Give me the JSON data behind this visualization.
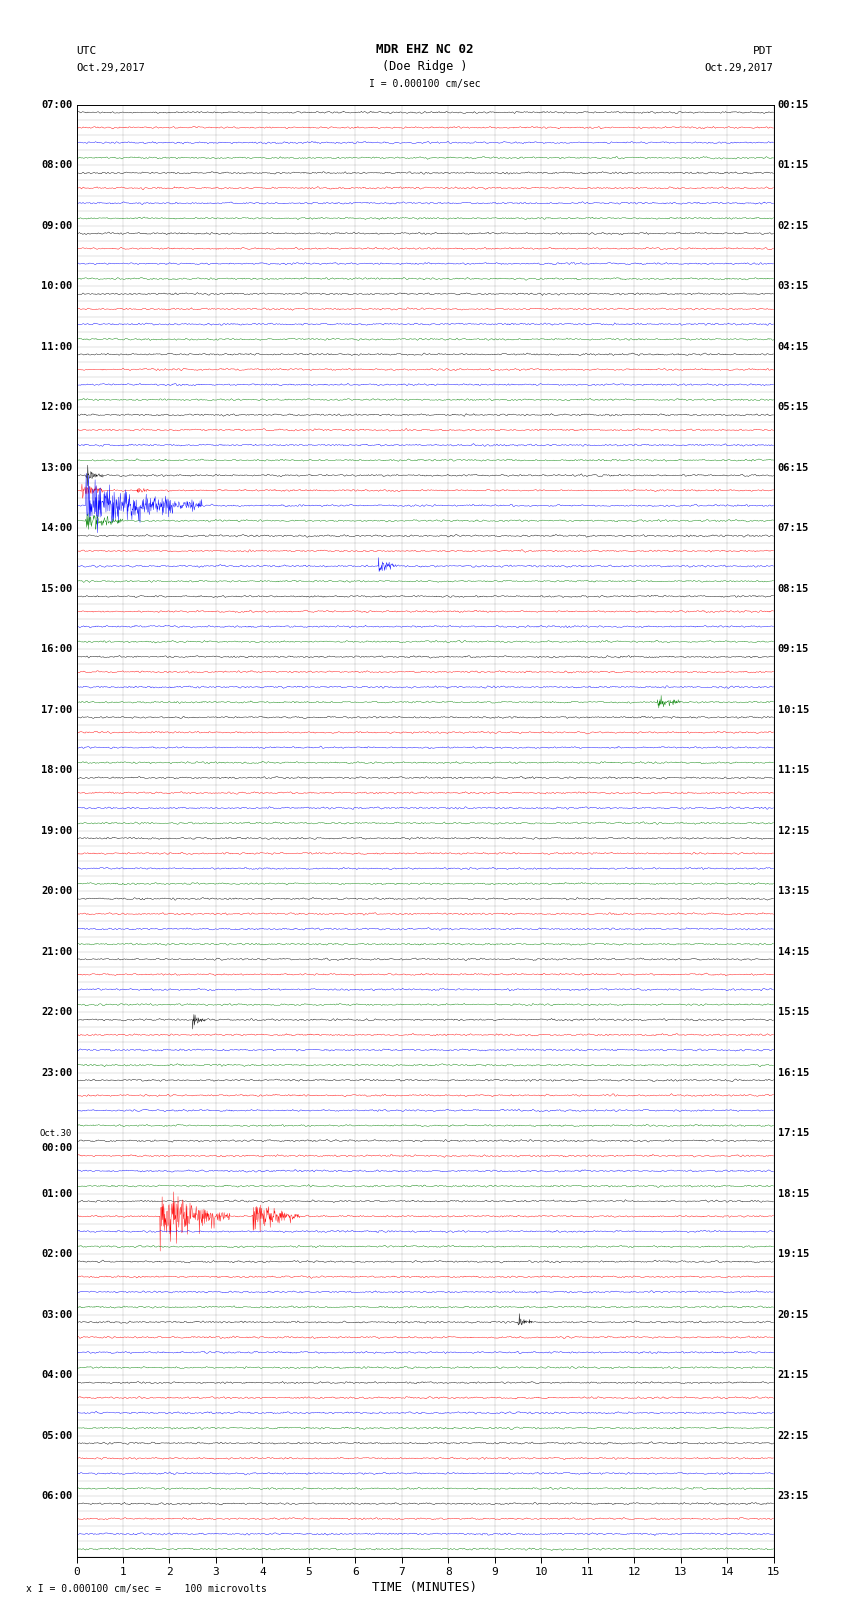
{
  "title_line1": "MDR EHZ NC 02",
  "title_line2": "(Doe Ridge )",
  "utc_label": "UTC",
  "utc_date": "Oct.29,2017",
  "pdt_label": "PDT",
  "pdt_date": "Oct.29,2017",
  "scale_label": "I = 0.000100 cm/sec",
  "footer_label": "x I = 0.000100 cm/sec =    100 microvolts",
  "xlabel": "TIME (MINUTES)",
  "bg_color": "#ffffff",
  "trace_colors": [
    "black",
    "red",
    "blue",
    "green"
  ],
  "minutes_per_row": 15,
  "num_rows": 96,
  "left_times": [
    "07:00",
    "",
    "",
    "",
    "08:00",
    "",
    "",
    "",
    "09:00",
    "",
    "",
    "",
    "10:00",
    "",
    "",
    "",
    "11:00",
    "",
    "",
    "",
    "12:00",
    "",
    "",
    "",
    "13:00",
    "",
    "",
    "",
    "14:00",
    "",
    "",
    "",
    "15:00",
    "",
    "",
    "",
    "16:00",
    "",
    "",
    "",
    "17:00",
    "",
    "",
    "",
    "18:00",
    "",
    "",
    "",
    "19:00",
    "",
    "",
    "",
    "20:00",
    "",
    "",
    "",
    "21:00",
    "",
    "",
    "",
    "22:00",
    "",
    "",
    "",
    "23:00",
    "",
    "",
    "",
    "Oct.30",
    "00:00",
    "",
    "",
    "01:00",
    "",
    "",
    "",
    "02:00",
    "",
    "",
    "",
    "03:00",
    "",
    "",
    "",
    "04:00",
    "",
    "",
    "",
    "05:00",
    "",
    "",
    "",
    "06:00",
    "",
    "",
    ""
  ],
  "right_times": [
    "00:15",
    "",
    "",
    "",
    "01:15",
    "",
    "",
    "",
    "02:15",
    "",
    "",
    "",
    "03:15",
    "",
    "",
    "",
    "04:15",
    "",
    "",
    "",
    "05:15",
    "",
    "",
    "",
    "06:15",
    "",
    "",
    "",
    "07:15",
    "",
    "",
    "",
    "08:15",
    "",
    "",
    "",
    "09:15",
    "",
    "",
    "",
    "10:15",
    "",
    "",
    "",
    "11:15",
    "",
    "",
    "",
    "12:15",
    "",
    "",
    "",
    "13:15",
    "",
    "",
    "",
    "14:15",
    "",
    "",
    "",
    "15:15",
    "",
    "",
    "",
    "16:15",
    "",
    "",
    "",
    "17:15",
    "",
    "",
    "",
    "18:15",
    "",
    "",
    "",
    "19:15",
    "",
    "",
    "",
    "20:15",
    "",
    "",
    "",
    "21:15",
    "",
    "",
    "",
    "22:15",
    "",
    "",
    "",
    "23:15",
    "",
    "",
    ""
  ],
  "events": [
    {
      "row": 24,
      "time": 0.2,
      "color": "black",
      "amp": 1.5,
      "dur": 0.4
    },
    {
      "row": 25,
      "time": 1.3,
      "color": "red",
      "amp": 1.0,
      "dur": 0.3
    },
    {
      "row": 20,
      "time": 5.1,
      "color": "red",
      "amp": 2.0,
      "dur": 0.5
    },
    {
      "row": 21,
      "time": 5.2,
      "color": "blue",
      "amp": 1.5,
      "dur": 0.6
    },
    {
      "row": 22,
      "time": 5.0,
      "color": "green",
      "amp": 2.5,
      "dur": 0.8
    },
    {
      "row": 24,
      "time": 0.3,
      "color": "blue",
      "amp": 8.0,
      "dur": 3.0
    },
    {
      "row": 25,
      "time": 0.1,
      "color": "blue",
      "amp": 10.0,
      "dur": 3.5
    },
    {
      "row": 26,
      "time": 0.2,
      "color": "blue",
      "amp": 6.0,
      "dur": 2.5
    },
    {
      "row": 27,
      "time": 0.3,
      "color": "blue",
      "amp": 4.0,
      "dur": 2.0
    },
    {
      "row": 28,
      "time": 0.5,
      "color": "blue",
      "amp": 2.5,
      "dur": 1.5
    },
    {
      "row": 25,
      "time": 0.1,
      "color": "red",
      "amp": 2.0,
      "dur": 0.5
    },
    {
      "row": 26,
      "time": 0.1,
      "color": "red",
      "amp": 1.5,
      "dur": 0.4
    },
    {
      "row": 27,
      "time": 0.2,
      "color": "green",
      "amp": 2.5,
      "dur": 0.8
    },
    {
      "row": 28,
      "time": 0.3,
      "color": "green",
      "amp": 1.5,
      "dur": 0.6
    },
    {
      "row": 29,
      "time": 5.5,
      "color": "green",
      "amp": 2.0,
      "dur": 0.5
    },
    {
      "row": 30,
      "time": 6.5,
      "color": "blue",
      "amp": 2.0,
      "dur": 0.4
    },
    {
      "row": 32,
      "time": 6.8,
      "color": "blue",
      "amp": 1.5,
      "dur": 0.3
    },
    {
      "row": 36,
      "time": 12.8,
      "color": "red",
      "amp": 2.5,
      "dur": 1.0
    },
    {
      "row": 37,
      "time": 12.9,
      "color": "blue",
      "amp": 3.0,
      "dur": 1.5
    },
    {
      "row": 37,
      "time": 13.0,
      "color": "black",
      "amp": 6.0,
      "dur": 2.0
    },
    {
      "row": 38,
      "time": 13.1,
      "color": "black",
      "amp": 5.0,
      "dur": 1.8
    },
    {
      "row": 39,
      "time": 12.5,
      "color": "green",
      "amp": 1.5,
      "dur": 0.5
    },
    {
      "row": 40,
      "time": 7.5,
      "color": "blue",
      "amp": 1.5,
      "dur": 0.3
    },
    {
      "row": 44,
      "time": 5.5,
      "color": "green",
      "amp": 4.0,
      "dur": 1.0
    },
    {
      "row": 45,
      "time": 14.5,
      "color": "black",
      "amp": 3.0,
      "dur": 2.0
    },
    {
      "row": 46,
      "time": 14.3,
      "color": "black",
      "amp": 2.5,
      "dur": 1.5
    },
    {
      "row": 56,
      "time": 1.5,
      "color": "blue",
      "amp": 1.5,
      "dur": 0.3
    },
    {
      "row": 56,
      "time": 4.8,
      "color": "blue",
      "amp": 1.5,
      "dur": 0.3
    },
    {
      "row": 57,
      "time": 5.0,
      "color": "green",
      "amp": 1.0,
      "dur": 0.3
    },
    {
      "row": 60,
      "time": 2.5,
      "color": "black",
      "amp": 1.5,
      "dur": 0.3
    },
    {
      "row": 72,
      "time": 1.5,
      "color": "blue",
      "amp": 2.0,
      "dur": 0.4
    },
    {
      "row": 72,
      "time": 14.5,
      "color": "blue",
      "amp": 2.5,
      "dur": 0.5
    },
    {
      "row": 73,
      "time": 1.8,
      "color": "red",
      "amp": 6.0,
      "dur": 1.5
    },
    {
      "row": 73,
      "time": 3.8,
      "color": "red",
      "amp": 4.0,
      "dur": 1.0
    },
    {
      "row": 73,
      "time": 8.0,
      "color": "blue",
      "amp": 1.5,
      "dur": 0.3
    },
    {
      "row": 76,
      "time": 14.5,
      "color": "green",
      "amp": 1.5,
      "dur": 0.3
    },
    {
      "row": 80,
      "time": 9.5,
      "color": "black",
      "amp": 1.5,
      "dur": 0.3
    },
    {
      "row": 84,
      "time": 5.5,
      "color": "green",
      "amp": 1.5,
      "dur": 0.4
    }
  ]
}
